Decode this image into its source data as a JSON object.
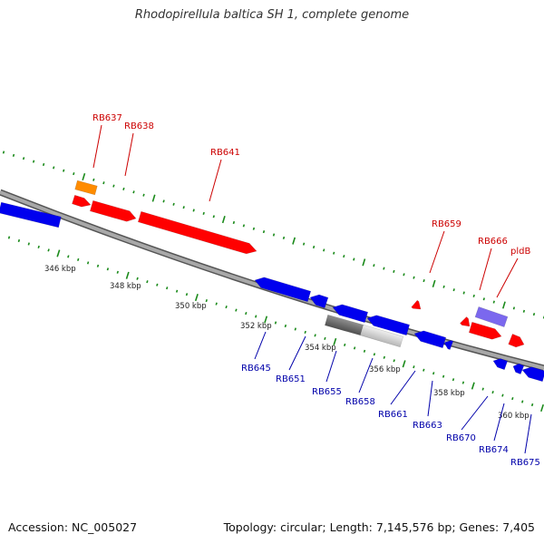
{
  "header": {
    "title": "Rhodopirellula baltica SH 1, complete genome"
  },
  "footer": {
    "accession": "Accession: NC_005027",
    "topology": "Topology: circular; Length: 7,145,576 bp; Genes: 7,405"
  },
  "colors": {
    "backbone": "#8a8a8a",
    "scale_ticks": "#1a8a1a",
    "forward_label": "#cc0000",
    "reverse_label": "#0000aa",
    "forward_gene": "#ff0000",
    "reverse_gene": "#0000ee",
    "orange_gene": "#ff8c00",
    "purple_gene": "#7b68ee",
    "gray_gene": "#707070"
  },
  "scale_labels": [
    "346 kbp",
    "348 kbp",
    "350 kbp",
    "352 kbp",
    "354 kbp",
    "356 kbp",
    "358 kbp",
    "360 kbp"
  ],
  "forward_genes": [
    "RB637",
    "RB638",
    "RB641",
    "RB659",
    "RB666",
    "pldB"
  ],
  "reverse_genes": [
    "RB645",
    "RB651",
    "RB655",
    "RB658",
    "RB661",
    "RB663",
    "RB670",
    "RB674",
    "RB675"
  ]
}
